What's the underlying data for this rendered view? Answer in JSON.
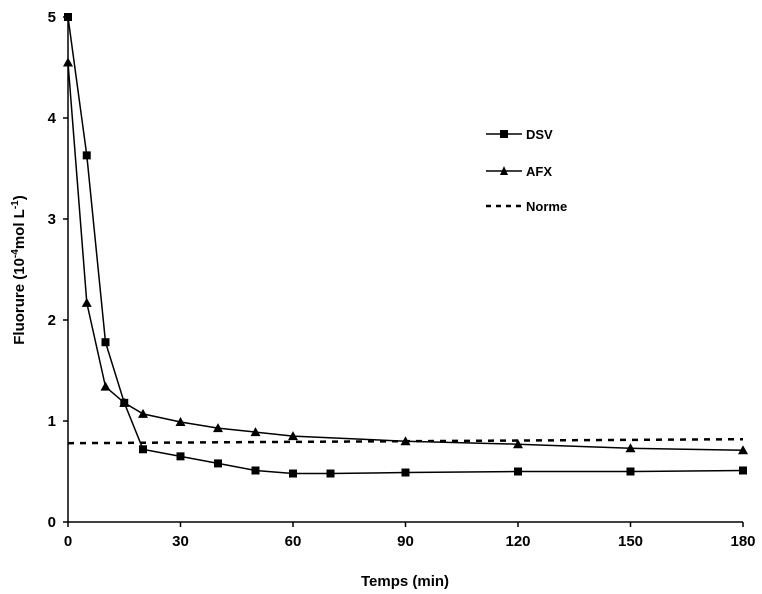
{
  "chart_data": {
    "type": "line",
    "xlabel": "Temps (min)",
    "ylabel": {
      "prefix": "Fluorure (10",
      "exp1": "-4",
      "mid": "mol L",
      "exp2": "-1",
      "suffix": ")"
    },
    "xlim": [
      0,
      180
    ],
    "ylim": [
      0,
      5
    ],
    "x_ticks": [
      0,
      30,
      60,
      90,
      120,
      150,
      180
    ],
    "y_ticks": [
      0,
      1,
      2,
      3,
      4,
      5
    ],
    "grid": false,
    "legend_position": "top-right",
    "series": [
      {
        "name": "DSV",
        "marker": "square",
        "line_style": "solid",
        "x": [
          0,
          5,
          10,
          15,
          20,
          30,
          40,
          50,
          60,
          70,
          90,
          120,
          150,
          180
        ],
        "y": [
          5.0,
          3.63,
          1.78,
          1.18,
          0.72,
          0.65,
          0.58,
          0.51,
          0.48,
          0.48,
          0.49,
          0.5,
          0.5,
          0.51
        ]
      },
      {
        "name": "AFX",
        "marker": "triangle",
        "line_style": "solid",
        "x": [
          0,
          5,
          10,
          15,
          20,
          30,
          40,
          50,
          60,
          90,
          120,
          150,
          180
        ],
        "y": [
          4.55,
          2.17,
          1.34,
          1.18,
          1.07,
          0.99,
          0.93,
          0.89,
          0.85,
          0.8,
          0.77,
          0.73,
          0.71
        ]
      },
      {
        "name": "Norme",
        "marker": "none",
        "line_style": "dashed",
        "x": [
          0,
          180
        ],
        "y": [
          0.78,
          0.82
        ]
      }
    ]
  }
}
